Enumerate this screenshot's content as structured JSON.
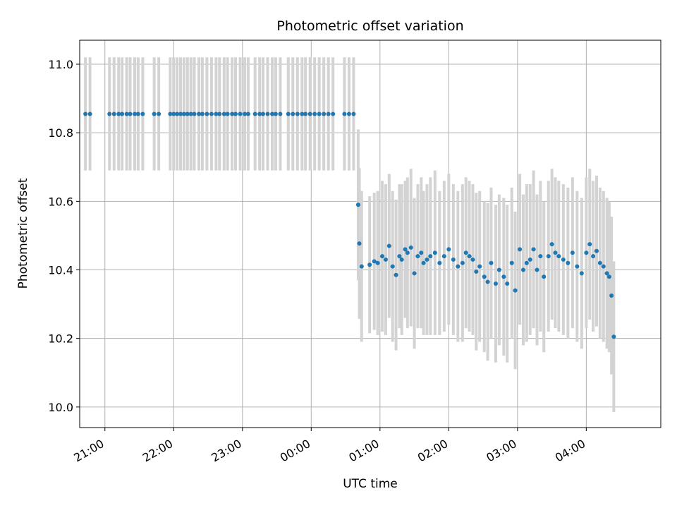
{
  "chart_data": {
    "type": "scatter",
    "title": "Photometric offset variation",
    "xlabel": "UTC time",
    "ylabel": "Photometric offset",
    "xlim": [
      "20:38",
      "29:05"
    ],
    "ylim": [
      9.94,
      11.07
    ],
    "x_ticks": [
      "21:00",
      "22:00",
      "23:00",
      "00:00",
      "01:00",
      "02:00",
      "03:00",
      "04:00"
    ],
    "y_ticks": [
      10.0,
      10.2,
      10.4,
      10.6,
      10.8,
      11.0
    ],
    "grid": true,
    "marker_color": "#1f77b4",
    "errorbar_color": "#d3d3d3",
    "series": [
      {
        "x": [
          "20:43",
          "20:47",
          "21:04",
          "21:08",
          "21:12",
          "21:15",
          "21:19",
          "21:22",
          "21:26",
          "21:29",
          "21:33",
          "21:43",
          "21:47",
          "21:57",
          "22:00",
          "22:03",
          "22:06",
          "22:09",
          "22:12",
          "22:15",
          "22:18",
          "22:22",
          "22:25",
          "22:29",
          "22:33",
          "22:37",
          "22:40",
          "22:44",
          "22:47",
          "22:51",
          "22:54",
          "22:58",
          "23:02",
          "23:05",
          "23:11",
          "23:15",
          "23:18",
          "23:22",
          "23:26",
          "23:29",
          "23:33",
          "23:40",
          "23:44",
          "23:48",
          "23:52",
          "23:55",
          "23:59",
          "24:03",
          "24:07",
          "24:11",
          "24:15",
          "24:19",
          "24:29",
          "24:33",
          "24:37"
        ],
        "y": [
          10.855,
          10.855,
          10.855,
          10.855,
          10.855,
          10.855,
          10.855,
          10.855,
          10.855,
          10.855,
          10.855,
          10.855,
          10.855,
          10.855,
          10.855,
          10.855,
          10.855,
          10.855,
          10.855,
          10.855,
          10.855,
          10.855,
          10.855,
          10.855,
          10.855,
          10.855,
          10.855,
          10.855,
          10.855,
          10.855,
          10.855,
          10.855,
          10.855,
          10.855,
          10.855,
          10.855,
          10.855,
          10.855,
          10.855,
          10.855,
          10.855,
          10.855,
          10.855,
          10.855,
          10.855,
          10.855,
          10.855,
          10.855,
          10.855,
          10.855,
          10.855,
          10.855,
          10.855,
          10.855,
          10.855
        ],
        "err": [
          0.165,
          0.165,
          0.165,
          0.165,
          0.165,
          0.165,
          0.165,
          0.165,
          0.165,
          0.165,
          0.165,
          0.165,
          0.165,
          0.165,
          0.165,
          0.165,
          0.165,
          0.165,
          0.165,
          0.165,
          0.165,
          0.165,
          0.165,
          0.165,
          0.165,
          0.165,
          0.165,
          0.165,
          0.165,
          0.165,
          0.165,
          0.165,
          0.165,
          0.165,
          0.165,
          0.165,
          0.165,
          0.165,
          0.165,
          0.165,
          0.165,
          0.165,
          0.165,
          0.165,
          0.165,
          0.165,
          0.165,
          0.165,
          0.165,
          0.165,
          0.165,
          0.165,
          0.165,
          0.165,
          0.165
        ]
      },
      {
        "x": [
          "24:41",
          "24:42",
          "24:44",
          "24:51",
          "24:55",
          "24:58",
          "25:02",
          "25:05",
          "25:08",
          "25:11",
          "25:14",
          "25:17",
          "25:19",
          "25:22",
          "25:24",
          "25:27",
          "25:30",
          "25:33",
          "25:36",
          "25:38",
          "25:41",
          "25:44",
          "25:48",
          "25:52",
          "25:56",
          "26:00",
          "26:04",
          "26:08",
          "26:12",
          "26:15",
          "26:18",
          "26:21",
          "26:24",
          "26:27",
          "26:31",
          "26:34",
          "26:37",
          "26:41",
          "26:44",
          "26:48",
          "26:51",
          "26:55",
          "26:58",
          "27:02",
          "27:05",
          "27:08",
          "27:11",
          "27:14",
          "27:17",
          "27:20",
          "27:23",
          "27:27",
          "27:30",
          "27:33",
          "27:36",
          "27:40",
          "27:44",
          "27:48",
          "27:52",
          "27:56",
          "28:00",
          "28:03",
          "28:06",
          "28:09",
          "28:12",
          "28:15",
          "28:18",
          "28:20",
          "28:22",
          "28:24"
        ],
        "y": [
          10.59,
          10.477,
          10.41,
          10.415,
          10.425,
          10.42,
          10.44,
          10.43,
          10.47,
          10.41,
          10.385,
          10.44,
          10.43,
          10.46,
          10.45,
          10.465,
          10.39,
          10.44,
          10.45,
          10.42,
          10.43,
          10.44,
          10.45,
          10.42,
          10.44,
          10.46,
          10.43,
          10.41,
          10.42,
          10.45,
          10.44,
          10.43,
          10.395,
          10.41,
          10.38,
          10.365,
          10.42,
          10.36,
          10.4,
          10.38,
          10.36,
          10.42,
          10.34,
          10.46,
          10.4,
          10.42,
          10.43,
          10.46,
          10.4,
          10.44,
          10.38,
          10.44,
          10.475,
          10.45,
          10.44,
          10.43,
          10.42,
          10.45,
          10.41,
          10.39,
          10.45,
          10.475,
          10.44,
          10.455,
          10.42,
          10.41,
          10.39,
          10.38,
          10.325,
          10.205
        ],
        "err": [
          0.22,
          0.22,
          0.22,
          0.2,
          0.2,
          0.21,
          0.22,
          0.22,
          0.21,
          0.22,
          0.22,
          0.21,
          0.22,
          0.2,
          0.22,
          0.23,
          0.22,
          0.21,
          0.22,
          0.21,
          0.22,
          0.23,
          0.24,
          0.21,
          0.22,
          0.22,
          0.22,
          0.22,
          0.23,
          0.22,
          0.22,
          0.22,
          0.23,
          0.22,
          0.22,
          0.23,
          0.22,
          0.23,
          0.22,
          0.23,
          0.23,
          0.22,
          0.23,
          0.22,
          0.22,
          0.23,
          0.22,
          0.23,
          0.22,
          0.22,
          0.22,
          0.22,
          0.22,
          0.22,
          0.22,
          0.22,
          0.22,
          0.22,
          0.22,
          0.22,
          0.22,
          0.22,
          0.22,
          0.22,
          0.22,
          0.22,
          0.22,
          0.22,
          0.23,
          0.22
        ]
      }
    ]
  }
}
